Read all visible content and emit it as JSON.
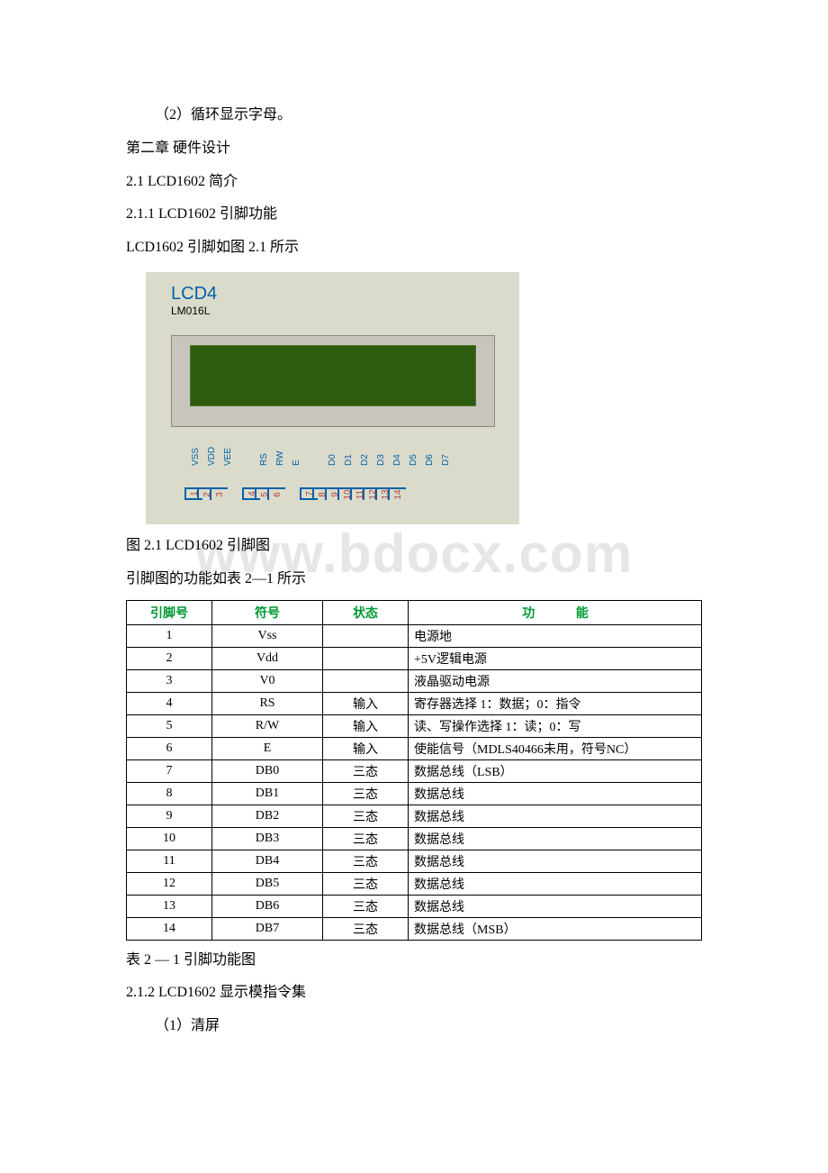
{
  "watermark": "www.bdocx.com",
  "text": {
    "p1": "（2）循环显示字母。",
    "p2": "第二章 硬件设计",
    "p3": "2.1 LCD1602 简介",
    "p4": "2.1.1 LCD1602    引脚功能",
    "p5": "LCD1602 引脚如图 2.1 所示",
    "p6": "图 2.1 LCD1602 引脚图",
    "p7": "引脚图的功能如表 2—1 所示",
    "p8": "表 2 — 1 引脚功能图",
    "p9": "2.1.2  LCD1602 显示模指令集",
    "p10": "（1）清屏"
  },
  "diagram": {
    "title": "LCD4",
    "subtitle": "LM016L",
    "pin_labels_g1": [
      "VSS",
      "VDD",
      "VEE"
    ],
    "pin_labels_g2": [
      "RS",
      "RW",
      "E"
    ],
    "pin_labels_g3": [
      "D0",
      "D1",
      "D2",
      "D3",
      "D4",
      "D5",
      "D6",
      "D7"
    ],
    "pin_numbers_g1": [
      "1",
      "2",
      "3"
    ],
    "pin_numbers_g2": [
      "4",
      "5",
      "6"
    ],
    "pin_numbers_g3": [
      "7",
      "8",
      "9",
      "10",
      "11",
      "12",
      "13",
      "14"
    ],
    "colors": {
      "bg": "#dbdbcb",
      "title": "#0060a8",
      "screen": "#2e5c0e",
      "pin_num": "#b04040"
    }
  },
  "table": {
    "headers": [
      "引脚号",
      "符号",
      "状态",
      "功   能"
    ],
    "header_color": "#009933",
    "rows": [
      [
        "1",
        "Vss",
        "",
        "电源地"
      ],
      [
        "2",
        "Vdd",
        "",
        "+5V逻辑电源"
      ],
      [
        "3",
        "V0",
        "",
        "液晶驱动电源"
      ],
      [
        "4",
        "RS",
        "输入",
        "寄存器选择 1：数据；0：指令"
      ],
      [
        "5",
        "R/W",
        "输入",
        "读、写操作选择 1：读；0：写"
      ],
      [
        "6",
        "E",
        "输入",
        "使能信号（MDLS40466未用，符号NC）"
      ],
      [
        "7",
        "DB0",
        "三态",
        "数据总线（LSB）"
      ],
      [
        "8",
        "DB1",
        "三态",
        "数据总线"
      ],
      [
        "9",
        "DB2",
        "三态",
        "数据总线"
      ],
      [
        "10",
        "DB3",
        "三态",
        "数据总线"
      ],
      [
        "11",
        "DB4",
        "三态",
        "数据总线"
      ],
      [
        "12",
        "DB5",
        "三态",
        "数据总线"
      ],
      [
        "13",
        "DB6",
        "三态",
        "数据总线"
      ],
      [
        "14",
        "DB7",
        "三态",
        "数据总线（MSB）"
      ]
    ]
  }
}
